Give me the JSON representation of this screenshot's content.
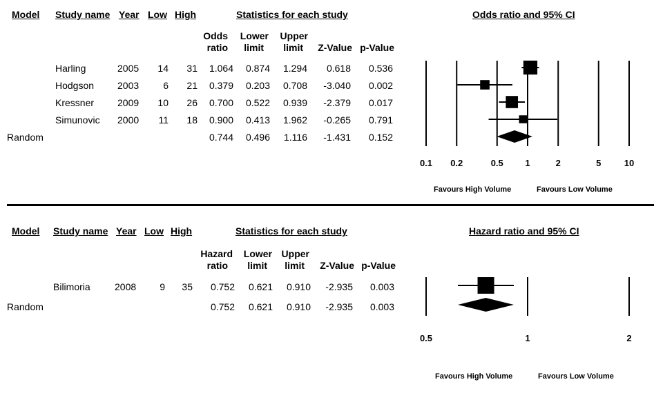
{
  "chart_data": [
    {
      "type": "forest",
      "headers": {
        "model": "Model",
        "study_name": "Study name",
        "year": "Year",
        "low": "Low",
        "high": "High",
        "statistics": "Statistics for each study",
        "plot_title": "Odds ratio and 95% CI",
        "ratio_l1": "Odds",
        "ratio_l2": "ratio",
        "lower_l1": "Lower",
        "lower_l2": "limit",
        "upper_l1": "Upper",
        "upper_l2": "limit",
        "z": "Z-Value",
        "p": "p-Value"
      },
      "studies": [
        {
          "name": "Harling",
          "year": "2005",
          "low": "14",
          "high": "31",
          "ratio": "1.064",
          "lower": "0.874",
          "upper": "1.294",
          "z": "0.618",
          "p": "0.536",
          "weight": 0.92
        },
        {
          "name": "Hodgson",
          "year": "2003",
          "low": "6",
          "high": "21",
          "ratio": "0.379",
          "lower": "0.203",
          "upper": "0.708",
          "z": "-3.040",
          "p": "0.002",
          "weight": 0.62
        },
        {
          "name": "Kressner",
          "year": "2009",
          "low": "10",
          "high": "26",
          "ratio": "0.700",
          "lower": "0.522",
          "upper": "0.939",
          "z": "-2.379",
          "p": "0.017",
          "weight": 0.8
        },
        {
          "name": "Simunovic",
          "year": "2000",
          "low": "11",
          "high": "18",
          "ratio": "0.900",
          "lower": "0.413",
          "upper": "1.962",
          "z": "-0.265",
          "p": "0.791",
          "weight": 0.52
        }
      ],
      "summary": {
        "label": "Random",
        "ratio": "0.744",
        "lower": "0.496",
        "upper": "1.116",
        "z": "-1.431",
        "p": "0.152"
      },
      "axis": {
        "scale": "log",
        "ticks": [
          0.1,
          0.2,
          0.5,
          1,
          2,
          5,
          10
        ],
        "tick_labels": [
          "0.1",
          "0.2",
          "0.5",
          "1",
          "2",
          "5",
          "10"
        ],
        "range": [
          0.1,
          10
        ]
      },
      "favours_left": "Favours High Volume",
      "favours_right": "Favours Low Volume"
    },
    {
      "type": "forest",
      "headers": {
        "model": "Model",
        "study_name": "Study name",
        "year": "Year",
        "low": "Low",
        "high": "High",
        "statistics": "Statistics for each study",
        "plot_title": "Hazard ratio and 95% CI",
        "ratio_l1": "Hazard",
        "ratio_l2": "ratio",
        "lower_l1": "Lower",
        "lower_l2": "limit",
        "upper_l1": "Upper",
        "upper_l2": "limit",
        "z": "Z-Value",
        "p": "p-Value"
      },
      "studies": [
        {
          "name": "Bilimoria",
          "year": "2008",
          "low": "9",
          "high": "35",
          "ratio": "0.752",
          "lower": "0.621",
          "upper": "0.910",
          "z": "-2.935",
          "p": "0.003",
          "weight": 1.0
        }
      ],
      "summary": {
        "label": "Random",
        "ratio": "0.752",
        "lower": "0.621",
        "upper": "0.910",
        "z": "-2.935",
        "p": "0.003"
      },
      "axis": {
        "scale": "log",
        "ticks": [
          0.5,
          1,
          2
        ],
        "tick_labels": [
          "0.5",
          "1",
          "2"
        ],
        "range": [
          0.5,
          2
        ]
      },
      "favours_left": "Favours High Volume",
      "favours_right": "Favours Low Volume"
    }
  ]
}
